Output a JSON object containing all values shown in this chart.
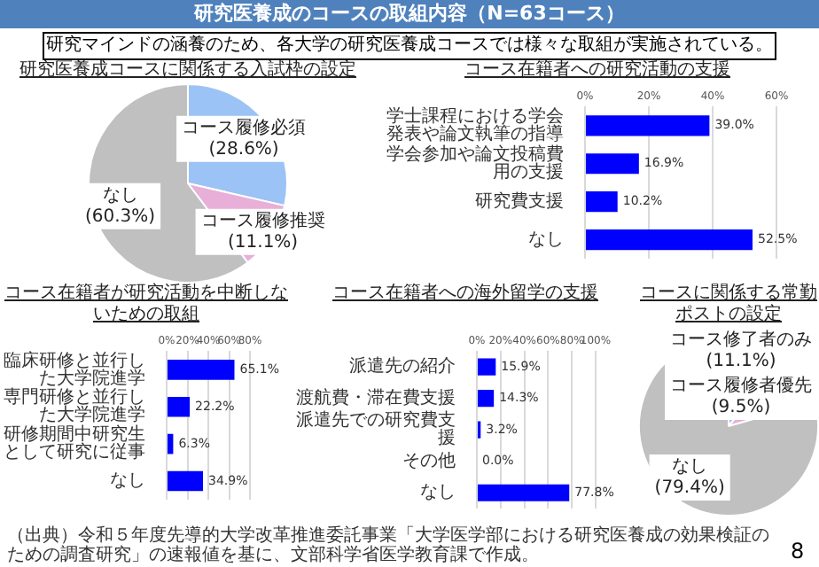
{
  "chart_data": [
    {
      "type": "pie",
      "title": "研究医養成コースに関係する入試枠の設定",
      "annotations": [
        "研究医養成のコースの取組内容（N=63コース）",
        "研究マインドの涵養のため、各大学の研究医養成コースでは様々な取組が実施されている。"
      ],
      "categories": [
        "コース履修必須",
        "コース履修推奨",
        "なし"
      ],
      "values": [
        28.6,
        11.1,
        60.3
      ],
      "value_labels": [
        "(28.6%)",
        "(11.1%)",
        "(60.3%)"
      ],
      "colors": [
        "#9cc3f5",
        "#e8afd9",
        "#c0c0c0"
      ]
    },
    {
      "type": "bar",
      "orientation": "horizontal",
      "title": "コース在籍者への研究活動の支援",
      "categories": [
        "学士課程における学会発表や論文執筆の指導",
        "学会参加や論文投稿費用の支援",
        "研究費支援",
        "なし"
      ],
      "values": [
        39.0,
        16.9,
        10.2,
        52.5
      ],
      "value_labels": [
        "39.0%",
        "16.9%",
        "10.2%",
        "52.5%"
      ],
      "color": "#0000ff",
      "xlim": [
        0,
        60
      ],
      "xticks": [
        {
          "value": 0,
          "label": "0%"
        },
        {
          "value": 20,
          "label": "20%"
        },
        {
          "value": 40,
          "label": "40%"
        },
        {
          "value": 60,
          "label": "60%"
        }
      ],
      "grid": "x"
    },
    {
      "type": "bar",
      "orientation": "horizontal",
      "title": "コース在籍者が研究活動を中断しないための取組",
      "categories": [
        "臨床研修と並行した大学院進学",
        "専門研修と並行した大学院進学",
        "研修期間中研究生として研究に従事",
        "なし"
      ],
      "values": [
        65.1,
        22.2,
        6.3,
        34.9
      ],
      "value_labels": [
        "65.1%",
        "22.2%",
        "6.3%",
        "34.9%"
      ],
      "color": "#0000ff",
      "xlim": [
        0,
        80
      ],
      "xticks": [
        {
          "value": 0,
          "label": "0%"
        },
        {
          "value": 20,
          "label": "20%"
        },
        {
          "value": 40,
          "label": "40%"
        },
        {
          "value": 60,
          "label": "60%"
        },
        {
          "value": 80,
          "label": "80%"
        }
      ],
      "grid": "x"
    },
    {
      "type": "bar",
      "orientation": "horizontal",
      "title": "コース在籍者への海外留学の支援",
      "categories": [
        "派遣先の紹介",
        "渡航費・滞在費支援",
        "派遣先での研究費支援",
        "その他",
        "なし"
      ],
      "values": [
        15.9,
        14.3,
        3.2,
        0.0,
        77.8
      ],
      "value_labels": [
        "15.9%",
        "14.3%",
        "3.2%",
        "0.0%",
        "77.8%"
      ],
      "color": "#0000ff",
      "xlim": [
        0,
        100
      ],
      "xticks": [
        {
          "value": 0,
          "label": "0%"
        },
        {
          "value": 20,
          "label": "20%"
        },
        {
          "value": 40,
          "label": "40%"
        },
        {
          "value": 60,
          "label": "60%"
        },
        {
          "value": 80,
          "label": "80%"
        },
        {
          "value": 100,
          "label": "100%"
        }
      ],
      "grid": "x"
    },
    {
      "type": "pie",
      "title": "コースに関係する常勤ポストの設定",
      "annotations": [
        "（出典）令和５年度先導的大学改革推進委託事業「大学医学部における研究医養成の効果検証のための調査研究」の速報値を基に、文部科学省医学教育課で作成。",
        "8"
      ],
      "categories": [
        "コース修了者のみ",
        "コース履修者優先",
        "なし"
      ],
      "values": [
        11.1,
        9.5,
        79.4
      ],
      "value_labels": [
        "(11.1%)",
        "(9.5%)",
        "(79.4%)"
      ],
      "colors": [
        "#9cc3f5",
        "#e8afd9",
        "#c0c0c0"
      ]
    }
  ]
}
